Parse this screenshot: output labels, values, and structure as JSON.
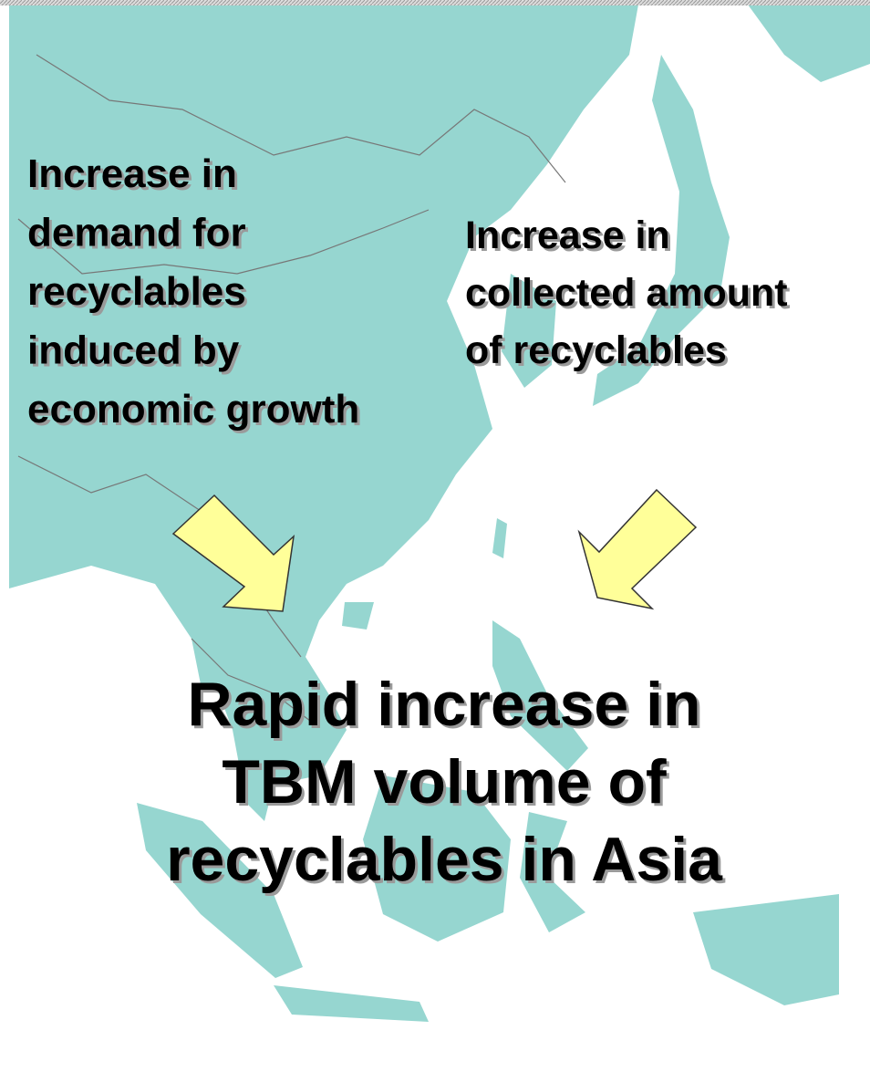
{
  "left_text": {
    "lines": [
      "Increase in",
      "demand for",
      "recyclables",
      "induced by",
      "economic growth"
    ]
  },
  "right_text": {
    "lines": [
      "Increase in",
      "collected amount",
      "of recyclables"
    ]
  },
  "main_text": {
    "lines": [
      "Rapid increase in",
      "TBM volume of",
      "recyclables in Asia"
    ]
  }
}
